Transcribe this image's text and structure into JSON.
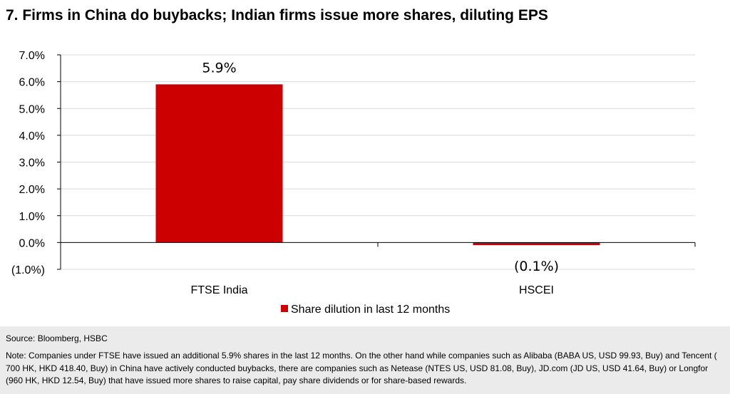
{
  "header": {
    "title": "7. Firms in China do buybacks; Indian firms issue more shares, diluting EPS"
  },
  "chart_data": {
    "type": "bar",
    "categories": [
      "FTSE India",
      "HSCEI"
    ],
    "series": [
      {
        "name": "Share dilution in last 12 months",
        "values": [
          5.9,
          -0.1
        ],
        "color": "#cc0000"
      }
    ],
    "data_labels": [
      "5.9%",
      "(0.1%)"
    ],
    "ylim": [
      -1.0,
      7.0
    ],
    "yticks": [
      7.0,
      6.0,
      5.0,
      4.0,
      3.0,
      2.0,
      1.0,
      0.0,
      -1.0
    ],
    "ytick_labels": [
      "7.0%",
      "6.0%",
      "5.0%",
      "4.0%",
      "3.0%",
      "2.0%",
      "1.0%",
      "0.0%",
      "(1.0%)"
    ],
    "legend_position": "bottom",
    "grid": true,
    "gridline_color": "#d9d9d9"
  },
  "footer": {
    "source": "Source: Bloomberg, HSBC",
    "note": "Note: Companies under FTSE have issued an additional 5.9% shares in the last 12 months. On the other hand while companies such as Alibaba (BABA US, USD 99.93, Buy) and Tencent ( 700 HK, HKD 418.40, Buy) in China have actively conducted buybacks, there are companies such as Netease (NTES US, USD 81.08, Buy), JD.com (JD US, USD 41.64, Buy) or Longfor (960 HK, HKD 12.54, Buy) that have issued more shares to raise capital, pay share dividends or for share-based rewards."
  }
}
